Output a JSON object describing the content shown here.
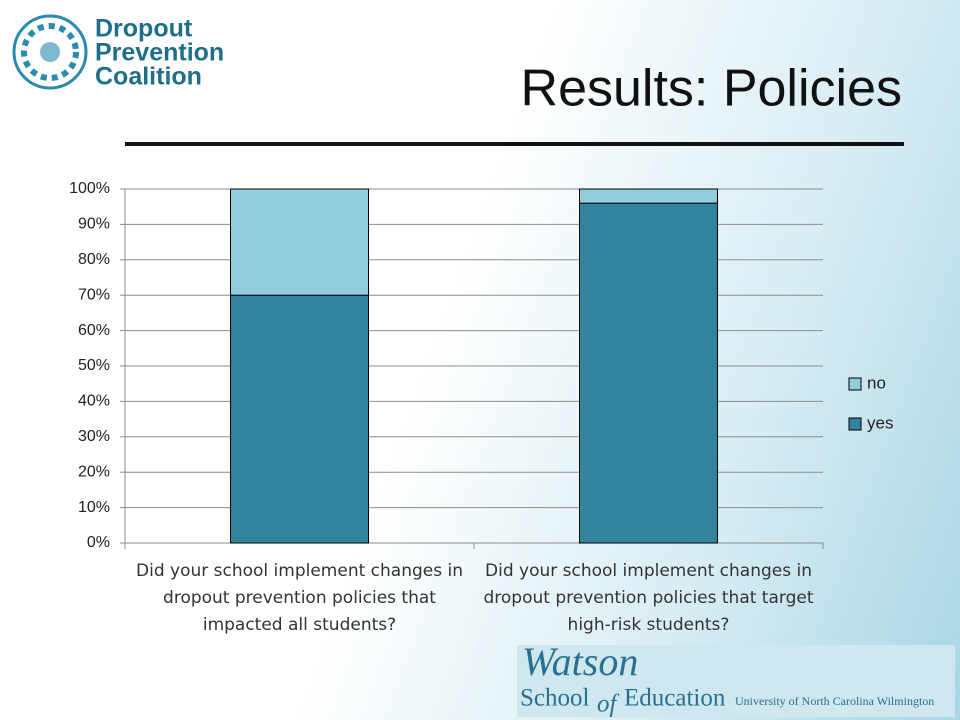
{
  "logo": {
    "lines": [
      "Dropout",
      "Prevention",
      "Coalition"
    ]
  },
  "footer_logo": {
    "name": "Watson",
    "school": "School",
    "of": "of",
    "education": "Education",
    "university": "University of North Carolina Wilmington"
  },
  "chart_data": {
    "type": "stacked_bar",
    "title": "Results: Policies",
    "categories": [
      "Did your school implement changes in dropout prevention policies that impacted all students?",
      "Did your school implement changes in dropout prevention policies that target high-risk students?"
    ],
    "series": [
      {
        "name": "yes",
        "color": "#31849b",
        "values": [
          70,
          96
        ]
      },
      {
        "name": "no",
        "color": "#92cddc",
        "values": [
          30,
          4
        ]
      }
    ],
    "ylim": [
      0,
      100
    ],
    "yticks": [
      {
        "value": 0,
        "label": "0%"
      },
      {
        "value": 10,
        "label": "10%"
      },
      {
        "value": 20,
        "label": "20%"
      },
      {
        "value": 30,
        "label": "30%"
      },
      {
        "value": 40,
        "label": "40%"
      },
      {
        "value": 50,
        "label": "50%"
      },
      {
        "value": 60,
        "label": "60%"
      },
      {
        "value": 70,
        "label": "70%"
      },
      {
        "value": 80,
        "label": "80%"
      },
      {
        "value": 90,
        "label": "90%"
      },
      {
        "value": 100,
        "label": "100%"
      }
    ],
    "grid": true,
    "legend": "right"
  }
}
